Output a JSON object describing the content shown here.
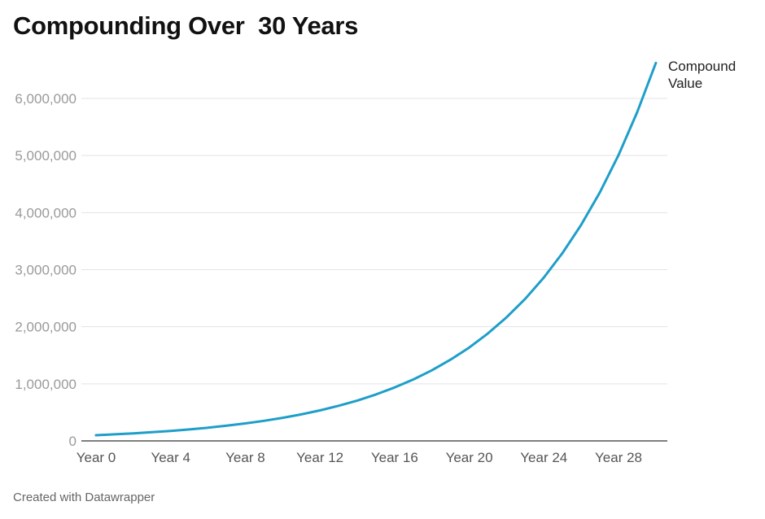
{
  "title": "Compounding Over  30 Years",
  "footer": "Created with Datawrapper",
  "chart_data": {
    "type": "line",
    "title": "Compounding Over  30 Years",
    "xlabel": "",
    "ylabel": "",
    "ylim": [
      0,
      6700000
    ],
    "yticks": [
      0,
      1000000,
      2000000,
      3000000,
      4000000,
      5000000,
      6000000
    ],
    "ytick_labels": [
      "0",
      "1,000,000",
      "2,000,000",
      "3,000,000",
      "4,000,000",
      "5,000,000",
      "6,000,000"
    ],
    "xticks": [
      0,
      4,
      8,
      12,
      16,
      20,
      24,
      28
    ],
    "xtick_labels": [
      "Year 0",
      "Year 4",
      "Year 8",
      "Year 12",
      "Year 16",
      "Year 20",
      "Year 24",
      "Year 28"
    ],
    "grid": true,
    "legend": "none",
    "series": [
      {
        "name": "Compound Value",
        "color": "#1e9ec9",
        "x": [
          0,
          1,
          2,
          3,
          4,
          5,
          6,
          7,
          8,
          9,
          10,
          11,
          12,
          13,
          14,
          15,
          16,
          17,
          18,
          19,
          20,
          21,
          22,
          23,
          24,
          25,
          26,
          27,
          28,
          29,
          30
        ],
        "values": [
          100000,
          115000,
          132250,
          152088,
          174901,
          201136,
          231306,
          266002,
          305902,
          351788,
          404556,
          465239,
          535025,
          615279,
          707571,
          813706,
          935762,
          1076126,
          1237545,
          1423177,
          1636654,
          1882152,
          2164475,
          2489146,
          2862518,
          3291895,
          3785680,
          4353531,
          5006561,
          5757545,
          6621177
        ]
      }
    ]
  }
}
